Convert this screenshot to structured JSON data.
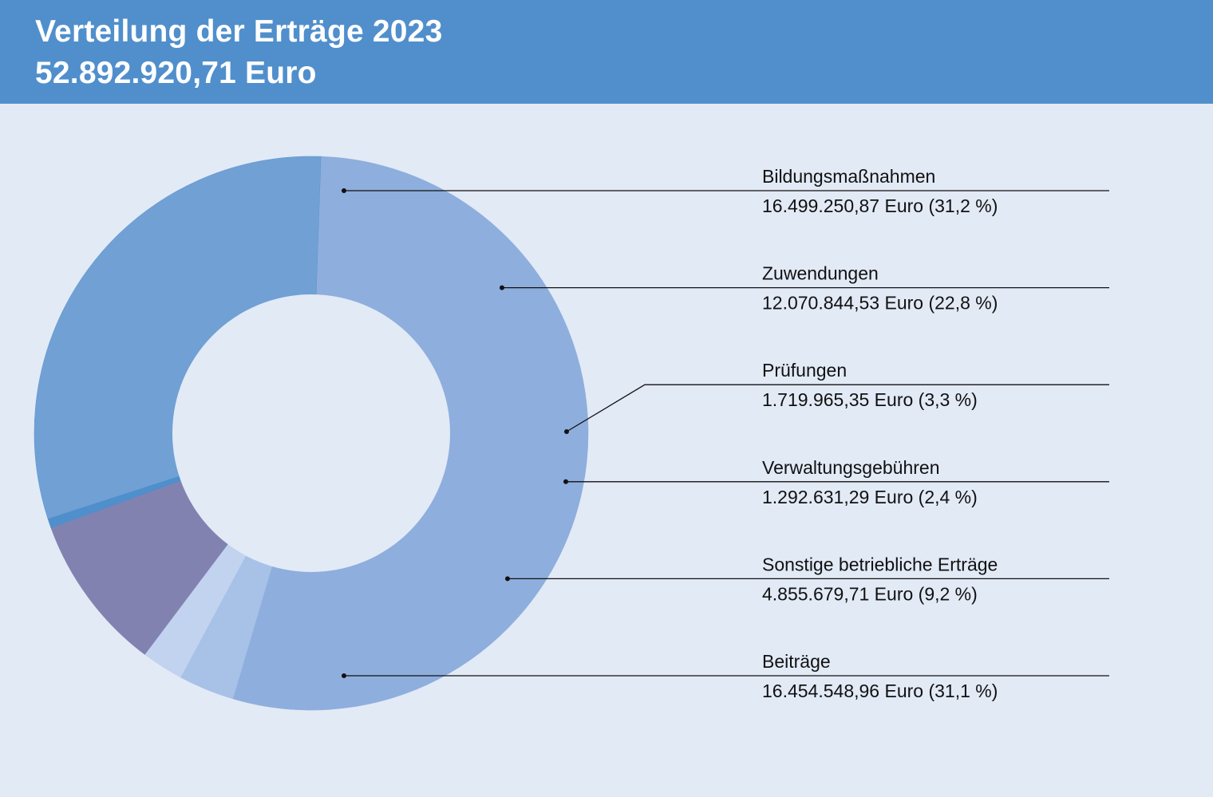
{
  "header": {
    "title": "Verteilung der Erträge 2023",
    "total": "52.892.920,71 Euro"
  },
  "chart_data": {
    "type": "pie",
    "title": "Verteilung der Erträge 2023",
    "subtitle": "52.892.920,71 Euro",
    "donut": true,
    "start_angle_deg": 2,
    "segments": [
      {
        "name": "Bildungsmaßnahmen",
        "value": 16499250.87,
        "percent": 31.2,
        "value_label": "16.499.250,87 Euro (31,2 %)",
        "color": "#8eaedd"
      },
      {
        "name": "Zuwendungen",
        "value": 12070844.53,
        "percent": 22.8,
        "value_label": "12.070.844,53 Euro (22,8 %)",
        "color": "#8eaedd"
      },
      {
        "name": "Prüfungen",
        "value": 1719965.35,
        "percent": 3.3,
        "value_label": "1.719.965,35 Euro (3,3 %)",
        "color": "#a8c1e7"
      },
      {
        "name": "Verwaltungsgebühren",
        "value": 1292631.29,
        "percent": 2.4,
        "value_label": "1.292.631,29 Euro (2,4 %)",
        "color": "#c2d3ef"
      },
      {
        "name": "Sonstige betriebliche Erträge",
        "value": 4855679.71,
        "percent": 9.2,
        "value_label": "4.855.679,71 Euro (9,2 %)",
        "color": "#8282b1"
      },
      {
        "name": "Beiträge",
        "value": 16454548.96,
        "percent": 31.1,
        "value_label": "16.454.548,96 Euro (31,1 %)",
        "color": "#4f8fcb"
      }
    ],
    "legend_placement": "right",
    "colors": {
      "leader_line": "#111111",
      "hole": "#e2eaf6",
      "upper_left_arc": "#70a0d4"
    }
  }
}
